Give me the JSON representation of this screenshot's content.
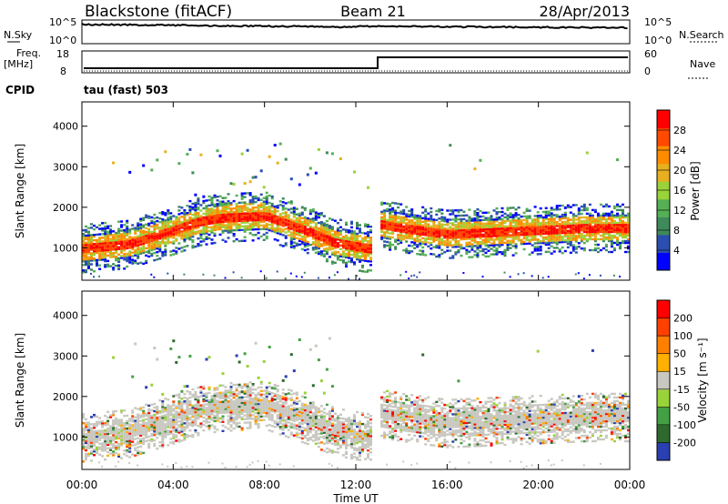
{
  "header": {
    "station": "Blackstone (fitACF)",
    "beam": "Beam 21",
    "date": "28/Apr/2013"
  },
  "top_panel": {
    "left_label": "N.Sky",
    "left_ticks": [
      "10^5",
      "10^0"
    ],
    "right_label": "N.Search",
    "right_ticks": [
      "10^5",
      "10^0"
    ]
  },
  "freq_panel": {
    "left_label_1": "Freq.",
    "left_label_2": "[MHz]",
    "left_ticks": [
      "18",
      "8"
    ],
    "right_label": "Nave",
    "right_ticks": [
      "60",
      "0"
    ]
  },
  "cpid": {
    "label": "CPID",
    "mode": "tau (fast) 503"
  },
  "colors": {
    "power": [
      "#0000ff",
      "#2a4fb0",
      "#3f8a5a",
      "#55b055",
      "#9ad23a",
      "#e6b020",
      "#ff8c00",
      "#ff4a00",
      "#ff0000"
    ],
    "velocity": [
      "#2a3fb0",
      "#2e6a2e",
      "#44a044",
      "#9ad23a",
      "#c8c8c0",
      "#ffb000",
      "#ff8000",
      "#ff4000",
      "#ff0000"
    ]
  },
  "chart_data": [
    {
      "type": "heatmap",
      "name": "power",
      "ylabel": "Slant Range [km]",
      "yticks": [
        1000,
        2000,
        3000,
        4000
      ],
      "xticks": [
        "00:00",
        "04:00",
        "08:00",
        "12:00",
        "16:00",
        "20:00",
        "00:00"
      ],
      "colorbar_label": "Power [dB]",
      "colorbar_ticks": [
        "28",
        "24",
        "20",
        "16",
        "12",
        "8",
        "4"
      ],
      "x_range_hours": [
        0,
        24
      ],
      "y_range_km": [
        200,
        4600
      ],
      "data_gap_hours": [
        12.6,
        13.0
      ],
      "series": [
        {
          "x": [
            0,
            2,
            4,
            5,
            6,
            8,
            10,
            11,
            12.5
          ],
          "y": [
            1000,
            1100,
            1450,
            1650,
            1750,
            1800,
            1400,
            1150,
            1000
          ],
          "power_db": 28
        },
        {
          "x": [
            13,
            14,
            16,
            18,
            20,
            22,
            24
          ],
          "y": [
            1600,
            1500,
            1350,
            1400,
            1450,
            1500,
            1500
          ],
          "power_db": 26
        }
      ]
    },
    {
      "type": "heatmap",
      "name": "velocity",
      "ylabel": "Slant Range [km]",
      "yticks": [
        1000,
        2000,
        3000,
        4000
      ],
      "xticks": [
        "00:00",
        "04:00",
        "08:00",
        "12:00",
        "16:00",
        "20:00",
        "00:00"
      ],
      "xlabel": "Time UT",
      "colorbar_label": "Velocity [m s⁻¹]",
      "colorbar_ticks": [
        "200",
        "100",
        "50",
        "15",
        "-15",
        "-50",
        "-100",
        "-200"
      ],
      "x_range_hours": [
        0,
        24
      ],
      "y_range_km": [
        200,
        4600
      ]
    }
  ]
}
